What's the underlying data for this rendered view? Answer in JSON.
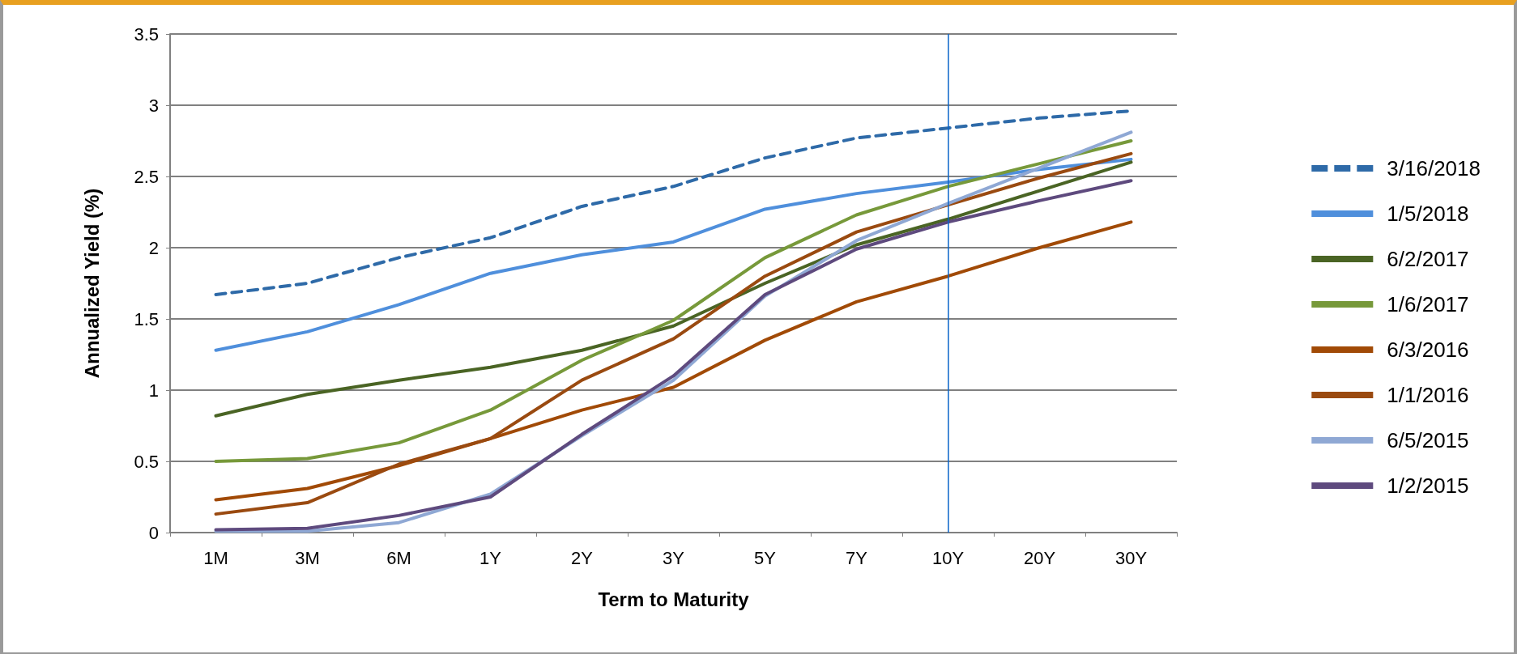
{
  "chart_data": {
    "type": "line",
    "xlabel": "Term to Maturity",
    "ylabel": "Annualized Yield (%)",
    "categories": [
      "1M",
      "3M",
      "6M",
      "1Y",
      "2Y",
      "3Y",
      "5Y",
      "7Y",
      "10Y",
      "20Y",
      "30Y"
    ],
    "series": [
      {
        "name": "3/16/2018",
        "color": "#2e6aa8",
        "line_style": "dashed",
        "values": [
          1.67,
          1.75,
          1.93,
          2.07,
          2.29,
          2.43,
          2.63,
          2.77,
          2.84,
          2.91,
          2.96
        ]
      },
      {
        "name": "1/5/2018",
        "color": "#4f8fdc",
        "values": [
          1.28,
          1.41,
          1.6,
          1.82,
          1.95,
          2.04,
          2.27,
          2.38,
          2.46,
          2.55,
          2.62
        ]
      },
      {
        "name": "6/2/2017",
        "color": "#4a6424",
        "values": [
          0.82,
          0.97,
          1.07,
          1.16,
          1.28,
          1.45,
          1.75,
          2.02,
          2.2,
          2.4,
          2.6
        ]
      },
      {
        "name": "1/6/2017",
        "color": "#77993a",
        "values": [
          0.5,
          0.52,
          0.63,
          0.86,
          1.21,
          1.49,
          1.93,
          2.23,
          2.43,
          2.59,
          2.75
        ]
      },
      {
        "name": "6/3/2016",
        "color": "#a14a06",
        "values": [
          0.23,
          0.31,
          0.47,
          0.66,
          0.86,
          1.02,
          1.35,
          1.62,
          1.8,
          2.0,
          2.18
        ]
      },
      {
        "name": "1/1/2016",
        "color": "#9a4a10",
        "values": [
          0.13,
          0.21,
          0.48,
          0.66,
          1.07,
          1.36,
          1.8,
          2.11,
          2.3,
          2.49,
          2.66
        ]
      },
      {
        "name": "6/5/2015",
        "color": "#8fa8d4",
        "values": [
          0.01,
          0.01,
          0.07,
          0.27,
          0.68,
          1.07,
          1.66,
          2.05,
          2.31,
          2.56,
          2.81
        ]
      },
      {
        "name": "1/2/2015",
        "color": "#5e4a7e",
        "values": [
          0.02,
          0.03,
          0.12,
          0.25,
          0.69,
          1.1,
          1.67,
          1.99,
          2.18,
          2.33,
          2.47
        ]
      }
    ],
    "ylim": [
      0,
      3.5
    ],
    "yticks": [
      0,
      0.5,
      1,
      1.5,
      2,
      2.5,
      3,
      3.5
    ],
    "ref_lines": [
      {
        "axis": "x",
        "value": "10Y",
        "color": "#0a64c8"
      }
    ],
    "grid": "y",
    "legend": "right",
    "marker": "none",
    "line_style": "solid"
  }
}
